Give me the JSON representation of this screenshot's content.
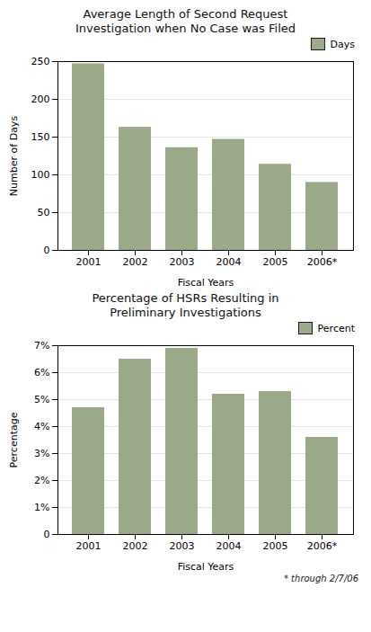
{
  "chart_data": [
    {
      "type": "bar",
      "title": "Average Length of Second Request\nInvestigation when No Case was Filed",
      "xlabel": "Fiscal Years",
      "ylabel": "Number of Days",
      "categories": [
        "2001",
        "2002",
        "2003",
        "2004",
        "2005",
        "2006*"
      ],
      "series": [
        {
          "name": "Days",
          "color": "#9aaa88",
          "values": [
            247,
            163,
            136,
            147,
            114,
            90
          ]
        }
      ],
      "ylim": [
        0,
        250
      ],
      "yticks": [
        0,
        50,
        100,
        150,
        200,
        250
      ],
      "grid": true,
      "legend": "upper right"
    },
    {
      "type": "bar",
      "title": "Percentage of HSRs Resulting in\nPreliminary Investigations",
      "xlabel": "Fiscal Years",
      "ylabel": "Percentage",
      "categories": [
        "2001",
        "2002",
        "2003",
        "2004",
        "2005",
        "2006*"
      ],
      "series": [
        {
          "name": "Percent",
          "color": "#9aaa88",
          "values": [
            4.7,
            6.5,
            6.9,
            5.2,
            5.3,
            3.6
          ]
        }
      ],
      "ylim": [
        0,
        7
      ],
      "yticks": [
        0,
        {
          "value": 1,
          "label": "1%"
        },
        {
          "value": 2,
          "label": "2%"
        },
        {
          "value": 3,
          "label": "3%"
        },
        {
          "value": 4,
          "label": "4%"
        },
        {
          "value": 5,
          "label": "5%"
        },
        {
          "value": 6,
          "label": "6%"
        },
        {
          "value": 7,
          "label": "7%"
        }
      ],
      "grid": true,
      "legend": "upper right",
      "annotations": [
        "* through 2/7/06"
      ]
    }
  ]
}
